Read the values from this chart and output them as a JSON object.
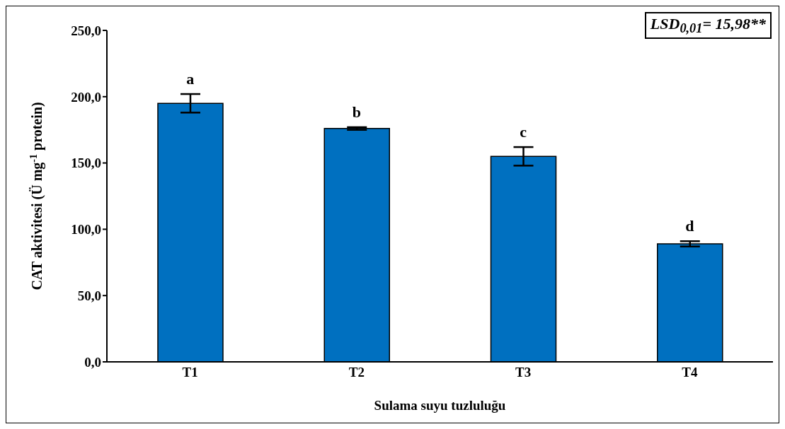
{
  "chart_data": {
    "type": "bar",
    "xlabel": "Sulama suyu tuzluluğu",
    "ylabel": "CAT aktivitesi (Ü mg$^{-1}$ protein)",
    "categories": [
      "T1",
      "T2",
      "T3",
      "T4"
    ],
    "values": [
      195,
      176,
      155,
      89
    ],
    "errors": [
      7,
      1,
      7,
      2
    ],
    "color": "#0070c0",
    "ylim": [
      0,
      250
    ],
    "yticks": [
      {
        "value": 0,
        "label": "0,0"
      },
      {
        "value": 50,
        "label": "50,0"
      },
      {
        "value": 100,
        "label": "100,0"
      },
      {
        "value": 150,
        "label": "150,0"
      },
      {
        "value": 200,
        "label": "200,0"
      },
      {
        "value": 250,
        "label": "250,0"
      }
    ],
    "grid": false,
    "legend": false,
    "annotations": [
      {
        "text": "a",
        "x": "T1",
        "y": 195
      },
      {
        "text": "b",
        "x": "T2",
        "y": 176
      },
      {
        "text": "c",
        "x": "T3",
        "y": 155
      },
      {
        "text": "d",
        "x": "T4",
        "y": 89
      },
      "LSD$_{0,01}$= 15,98**"
    ]
  }
}
